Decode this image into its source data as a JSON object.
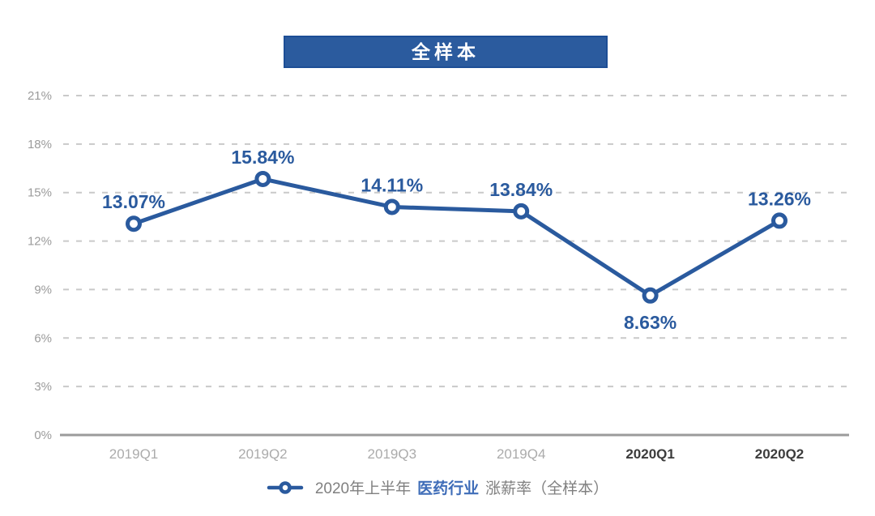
{
  "title": {
    "text": "全样本",
    "bg_color": "#2b5b9e",
    "border_color": "#1d4e96",
    "text_color": "#ffffff"
  },
  "chart_data": {
    "type": "line",
    "title": "全样本",
    "categories": [
      "2019Q1",
      "2019Q2",
      "2019Q3",
      "2019Q4",
      "2020Q1",
      "2020Q2"
    ],
    "values": [
      13.07,
      15.84,
      14.11,
      13.84,
      8.63,
      13.26
    ],
    "data_labels": [
      {
        "text": "13.07%",
        "position": "above"
      },
      {
        "text": "15.84%",
        "position": "above"
      },
      {
        "text": "14.11%",
        "position": "above"
      },
      {
        "text": "13.84%",
        "position": "above"
      },
      {
        "text": "8.63%",
        "position": "below"
      },
      {
        "text": "13.26%",
        "position": "above"
      }
    ],
    "bold_categories": [
      "2020Q1",
      "2020Q2"
    ],
    "xlabel": "",
    "ylabel": "",
    "ylim": [
      0,
      21
    ],
    "yticks": [
      0,
      3,
      6,
      9,
      12,
      15,
      18,
      21
    ],
    "ytick_suffix": "%",
    "grid": "dashed-horizontal",
    "legend_position": "bottom-center",
    "series_name": "2020年上半年 医药行业 涨薪率（全样本）",
    "colors": {
      "line": "#2a5a9e",
      "marker_fill": "#ffffff",
      "label": "#2a5a9e",
      "grid": "#c9c9c9",
      "axis": "#9b9b9b",
      "tick_label": "#9b9b9b",
      "xlabel_normal": "#ababab",
      "xlabel_bold": "#3c3c3c"
    }
  },
  "legend": {
    "prefix": "2020年上半年",
    "highlight": "医药行业",
    "suffix": "涨薪率（全样本）",
    "highlight_color": "#3f6db8",
    "text_color": "#808080"
  }
}
